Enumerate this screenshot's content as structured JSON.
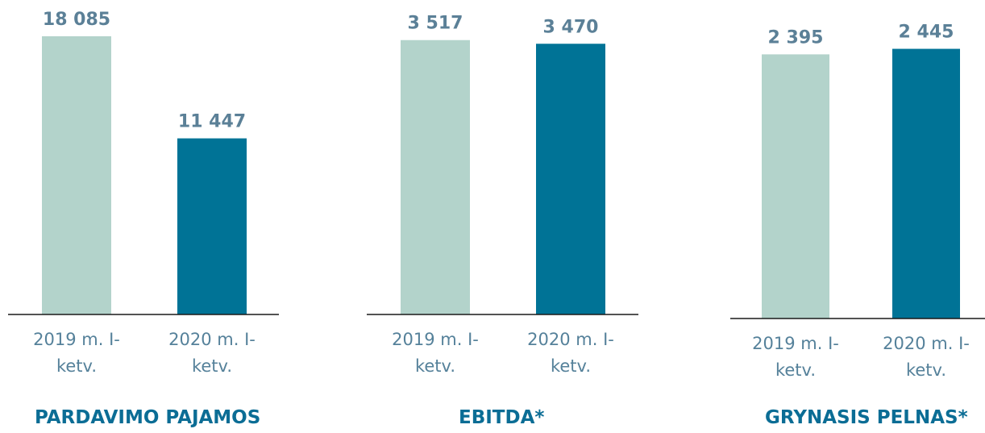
{
  "chart_data": [
    {
      "type": "bar",
      "title": "PARDAVIMO PAJAMOS",
      "categories": [
        "2019 m. I-ketv.",
        "2020 m. I-ketv."
      ],
      "values": [
        18085,
        11447
      ],
      "value_labels": [
        "18 085",
        "11 447"
      ],
      "colors": [
        "#b3d3cb",
        "#007396"
      ],
      "ylim": [
        0,
        20000
      ]
    },
    {
      "type": "bar",
      "title": "EBITDA*",
      "categories": [
        "2019 m. I-ketv.",
        "2020 m. I-ketv."
      ],
      "values": [
        3517,
        3470
      ],
      "value_labels": [
        "3 517",
        "3 470"
      ],
      "colors": [
        "#b3d3cb",
        "#007396"
      ],
      "ylim": [
        0,
        4000
      ]
    },
    {
      "type": "bar",
      "title": "GRYNASIS PELNAS*",
      "categories": [
        "2019 m. I-ketv.",
        "2020 m. I-ketv."
      ],
      "values": [
        2395,
        2445
      ],
      "value_labels": [
        "2 395",
        "2 445"
      ],
      "colors": [
        "#b3d3cb",
        "#007396"
      ],
      "ylim": [
        0,
        2800
      ]
    }
  ]
}
